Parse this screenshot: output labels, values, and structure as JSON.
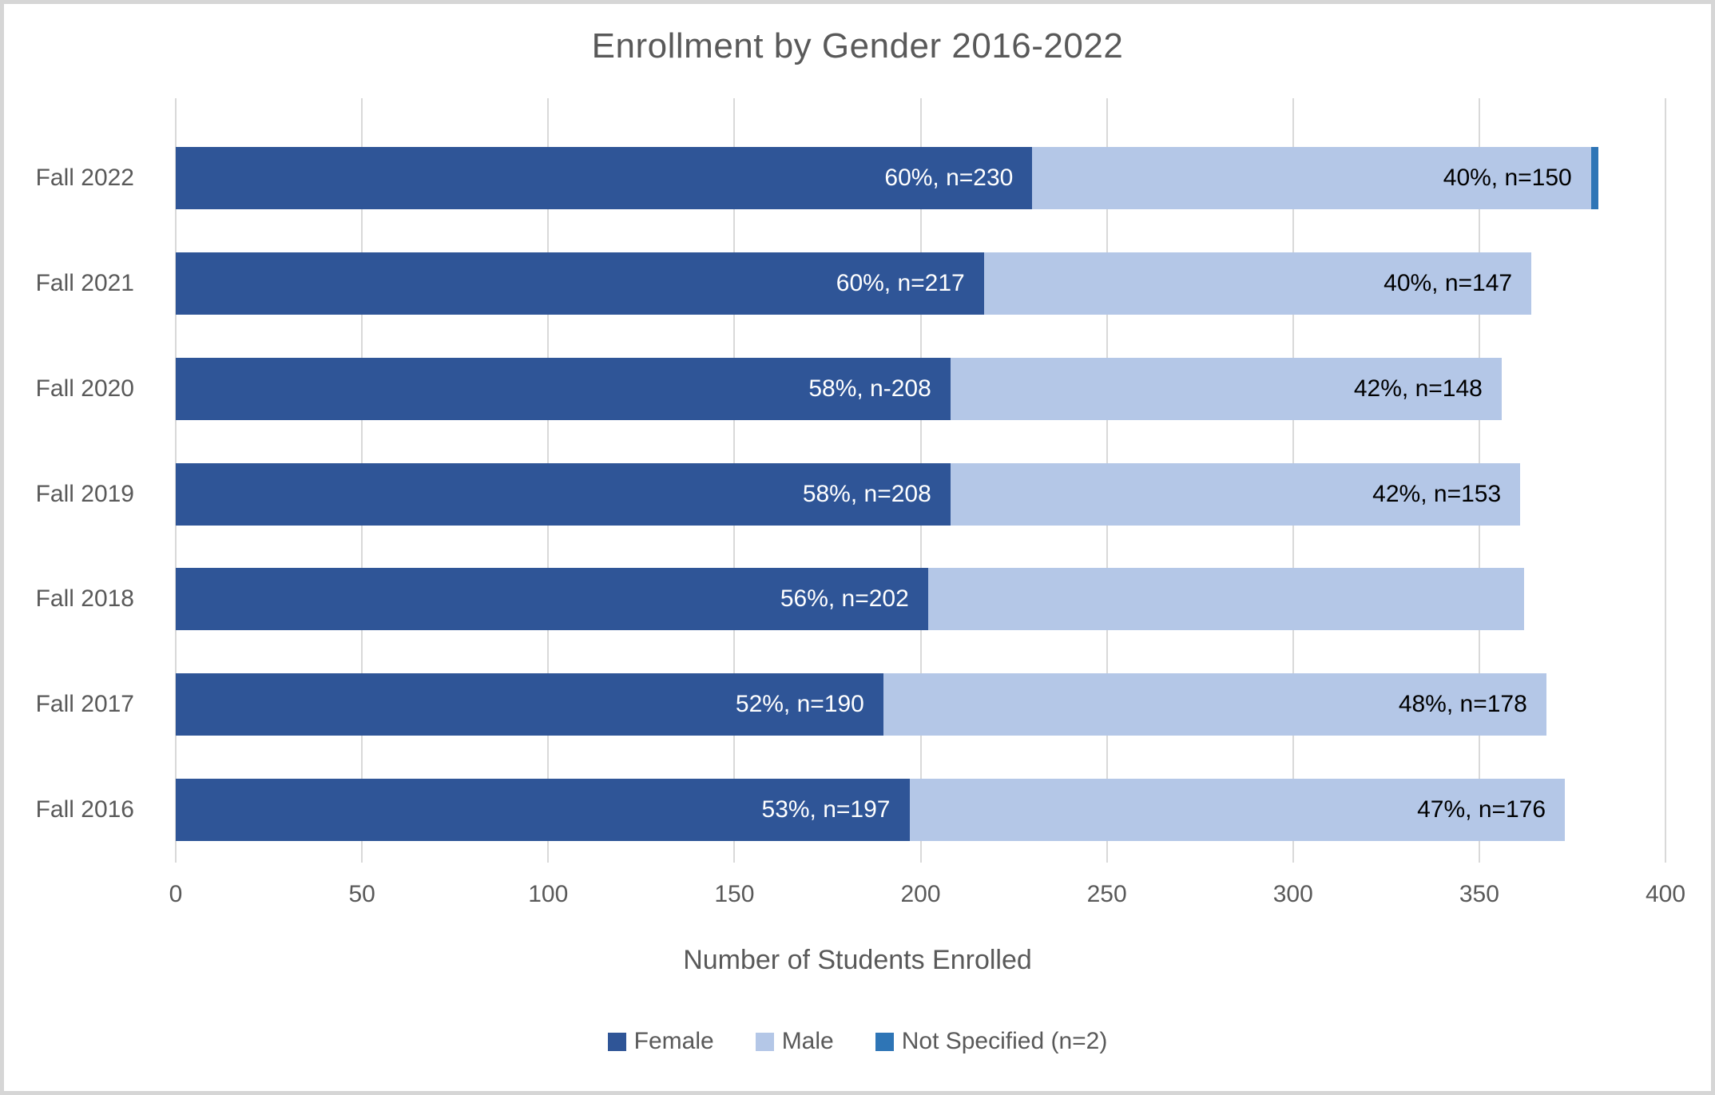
{
  "chart_data": {
    "type": "bar",
    "orientation": "horizontal",
    "stacked": true,
    "title": "Enrollment by Gender 2016-2022",
    "xlabel": "Number of Students Enrolled",
    "xlim": [
      0,
      400
    ],
    "xticks": [
      0,
      50,
      100,
      150,
      200,
      250,
      300,
      350,
      400
    ],
    "grid": "vertical",
    "legend_position": "bottom",
    "categories": [
      "Fall 2022",
      "Fall 2021",
      "Fall 2020",
      "Fall 2019",
      "Fall 2018",
      "Fall 2017",
      "Fall 2016"
    ],
    "series": [
      {
        "name": "Female",
        "color": "#2F5597",
        "label_color": "#FFFFFF",
        "values": [
          230,
          217,
          208,
          208,
          202,
          190,
          197
        ],
        "labels": [
          "60%, n=230",
          "60%, n=217",
          "58%, n-208",
          "58%, n=208",
          "56%, n=202",
          "52%, n=190",
          "53%, n=197"
        ]
      },
      {
        "name": "Male",
        "color": "#B4C7E7",
        "label_color": "#000000",
        "values": [
          150,
          147,
          148,
          153,
          160,
          178,
          176
        ],
        "labels": [
          "40%, n=150",
          "40%, n=147",
          "42%, n=148",
          "42%, n=153",
          "",
          "48%, n=178",
          "47%, n=176"
        ]
      },
      {
        "name": "Not Specified (n=2)",
        "color": "#2E75B6",
        "label_color": "#000000",
        "values": [
          2,
          0,
          0,
          0,
          0,
          0,
          0
        ],
        "labels": [
          "",
          "",
          "",
          "",
          "",
          "",
          ""
        ]
      }
    ],
    "colors": {
      "text": "#595959",
      "gridline": "#d9d9d9",
      "border": "#d6d6d6",
      "background": "#ffffff"
    }
  }
}
